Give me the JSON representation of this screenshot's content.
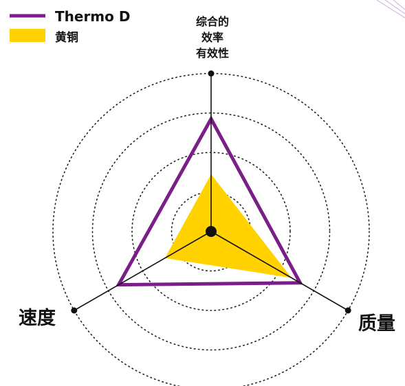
{
  "chart_data": {
    "type": "radar",
    "axes": [
      {
        "lines": [
          "综合的",
          "效率",
          "有效性"
        ]
      },
      {
        "lines": [
          "质量"
        ]
      },
      {
        "lines": [
          "速度"
        ]
      }
    ],
    "range": [
      0,
      4
    ],
    "rings": 4,
    "grid": true,
    "legend_position": "top-left",
    "series": [
      {
        "name": "Thermo D",
        "values": [
          2.85,
          2.6,
          2.7
        ],
        "color": "#7a1f87",
        "style": "line"
      },
      {
        "name": "黄铜",
        "values": [
          1.45,
          2.35,
          1.35
        ],
        "color": "#ffd200",
        "style": "fill"
      }
    ]
  },
  "decor": {
    "corner_lines_color": "#d8b9e0"
  }
}
